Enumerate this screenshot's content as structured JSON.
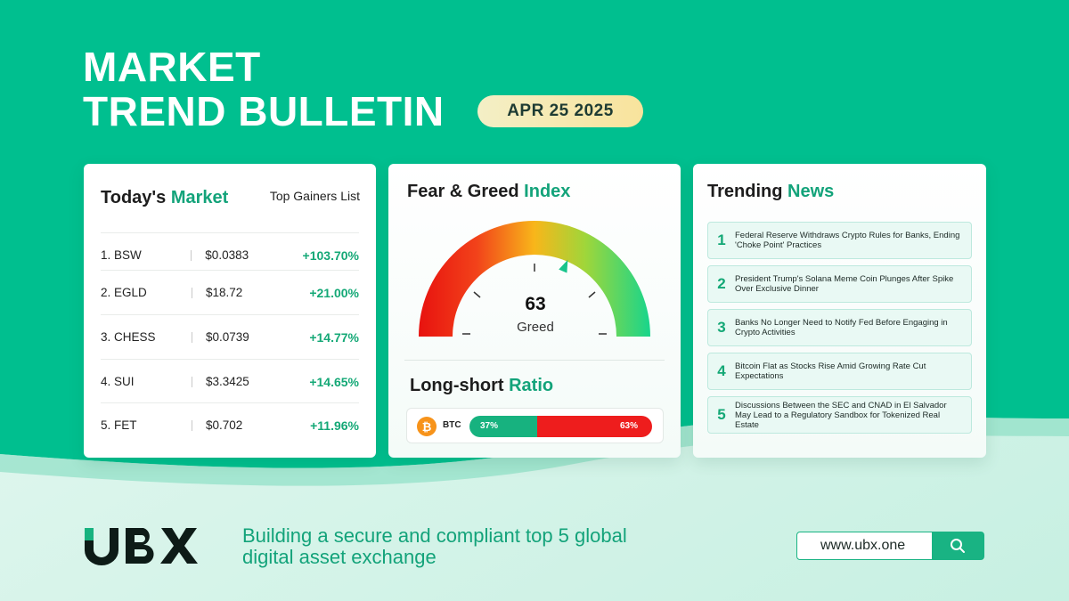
{
  "header": {
    "title_line1": "MARKET",
    "title_line2": "TREND BULLETIN",
    "date": "APR 25 2025"
  },
  "market": {
    "title_part1": "Today's ",
    "title_part2": "Market",
    "subtitle": "Top Gainers List",
    "rows": [
      {
        "name": "1. BSW",
        "price": "$0.0383",
        "change": "+103.70%"
      },
      {
        "name": "2. EGLD",
        "price": "$18.72",
        "change": "+21.00%"
      },
      {
        "name": "3. CHESS",
        "price": "$0.0739",
        "change": "+14.77%"
      },
      {
        "name": "4. SUI",
        "price": "$3.3425",
        "change": "+14.65%"
      },
      {
        "name": "5. FET",
        "price": "$0.702",
        "change": "+11.96%"
      }
    ]
  },
  "fear_greed": {
    "title_part1": "Fear & Greed ",
    "title_part2": "Index",
    "value": "63",
    "label": "Greed",
    "level": 63
  },
  "long_short": {
    "title_part1": "Long-short ",
    "title_part2": "Ratio",
    "asset": "BTC",
    "long_pct": "37%",
    "short_pct": "63%",
    "long_value": 37
  },
  "news": {
    "title_part1": "Trending ",
    "title_part2": "News",
    "items": [
      {
        "num": "1",
        "text": "Federal Reserve Withdraws Crypto Rules for Banks, Ending 'Choke Point' Practices"
      },
      {
        "num": "2",
        "text": "President Trump's Solana Meme Coin Plunges After Spike Over Exclusive Dinner"
      },
      {
        "num": "3",
        "text": "Banks No Longer Need to Notify Fed Before Engaging in Crypto Activities"
      },
      {
        "num": "4",
        "text": "Bitcoin Flat as Stocks Rise Amid Growing Rate Cut Expectations"
      },
      {
        "num": "5",
        "text": "Discussions Between the SEC and CNAD in El Salvador May Lead to a Regulatory Sandbox for Tokenized Real Estate"
      }
    ]
  },
  "footer": {
    "brand": "UBX",
    "tagline_line1": "Building a secure and compliant top 5 global",
    "tagline_line2": "digital asset exchange",
    "url": "www.ubx.one"
  },
  "colors": {
    "brand_green": "#00bf8f",
    "accent_green": "#14a876",
    "red": "#ee1d1d",
    "btc_orange": "#f7931a"
  }
}
